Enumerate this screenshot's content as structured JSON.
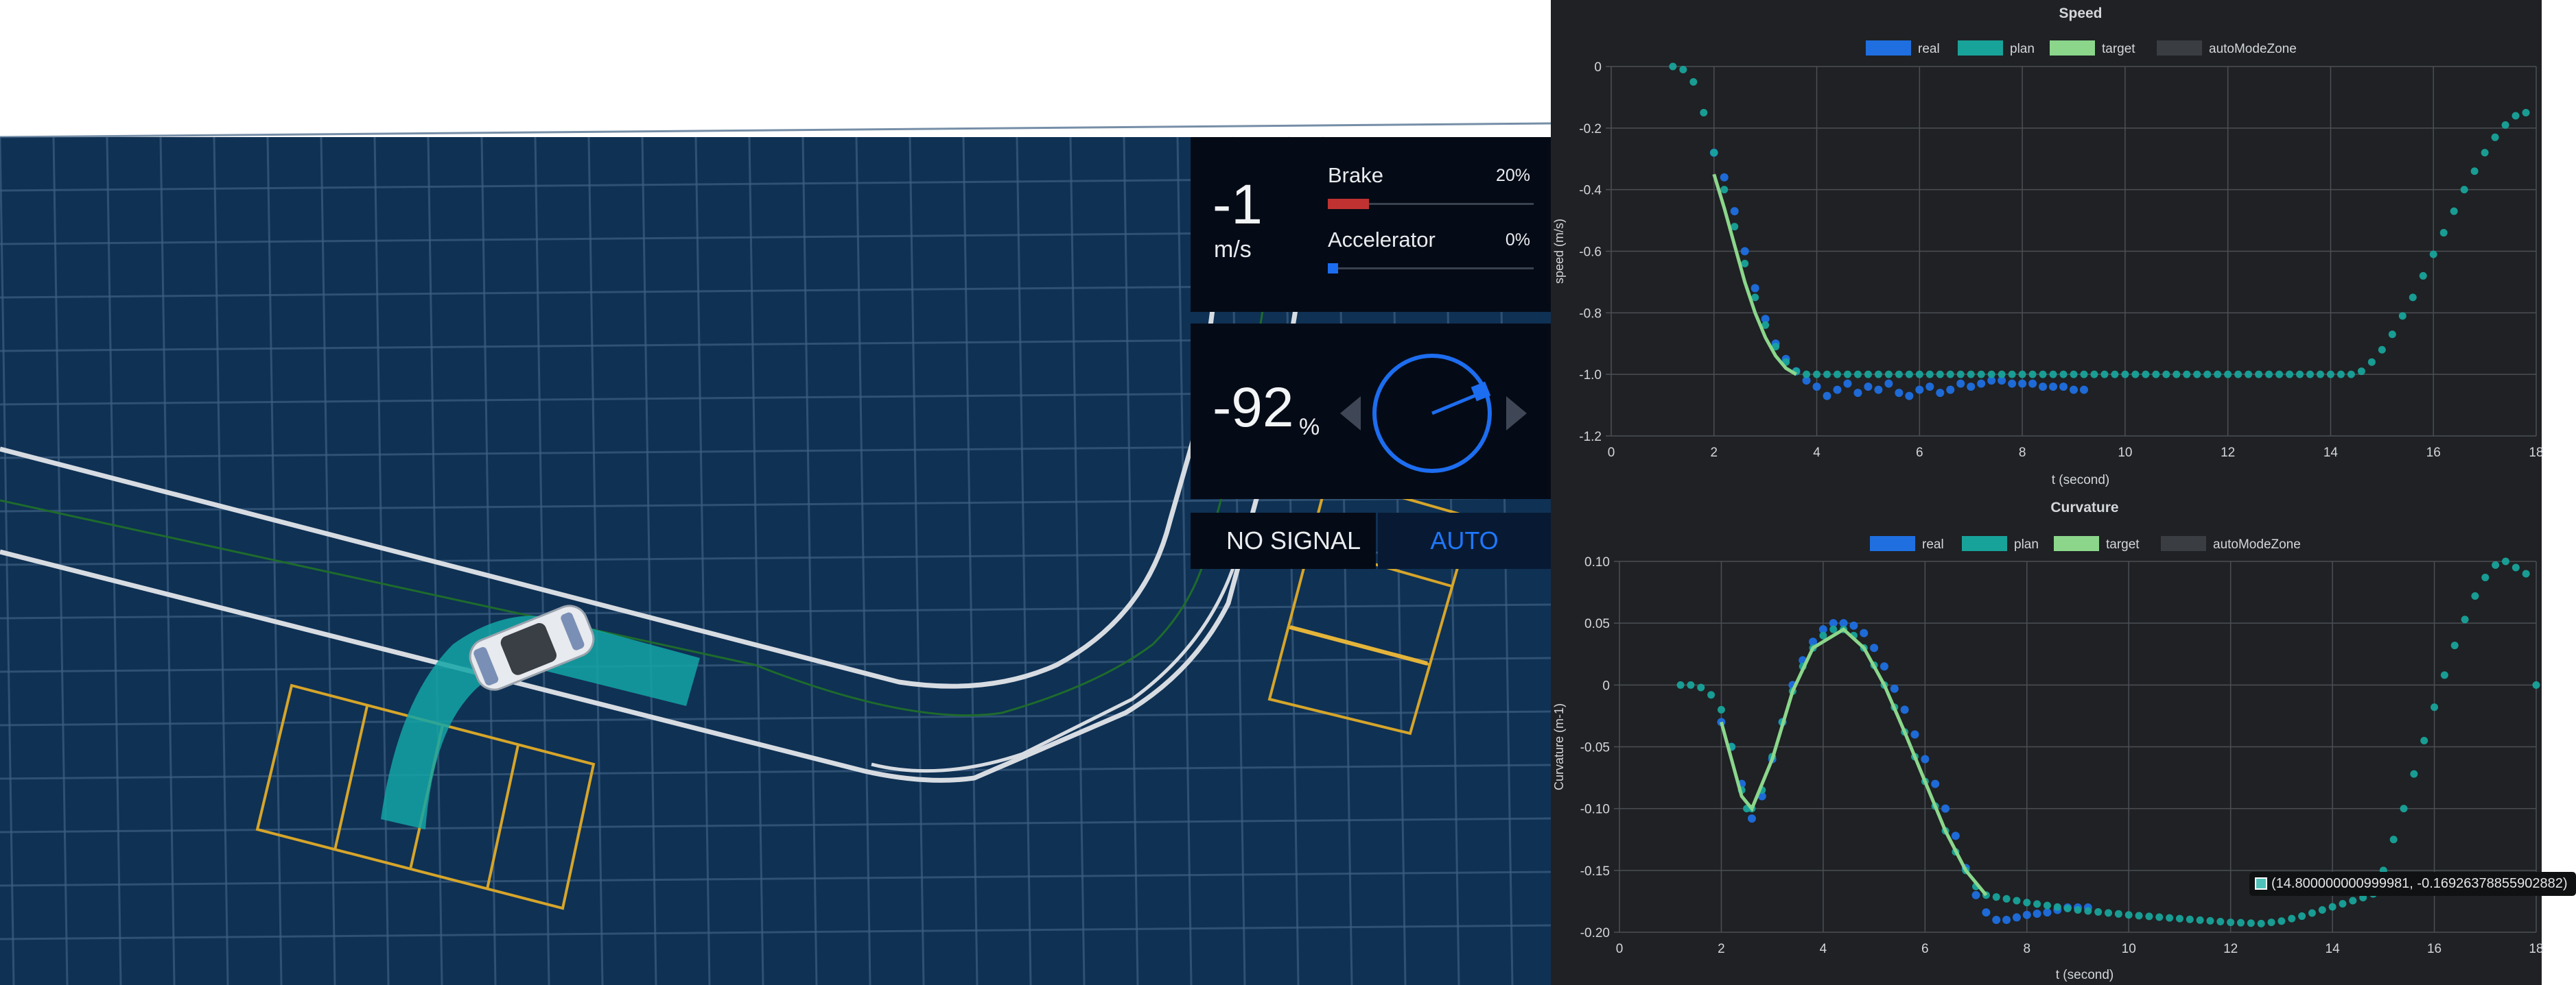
{
  "hud": {
    "speed_value": "-1",
    "speed_unit": "m/s",
    "brake_label": "Brake",
    "brake_pct": "20%",
    "brake_fraction": 0.2,
    "accel_label": "Accelerator",
    "accel_pct": "0%",
    "accel_fraction": 0.0,
    "steer_value": "-92",
    "steer_unit": "%",
    "signal_label": "NO SIGNAL",
    "mode_label": "AUTO"
  },
  "colors": {
    "scene_bg": "#0f3154",
    "real": "#1f6fe0",
    "plan": "#18a39a",
    "target": "#8bd68b",
    "auto_zone": "#3a3d42",
    "brake": "#c03232",
    "accel": "#1c6cf0"
  },
  "tooltip": {
    "text": "(14.800000000999981, -0.16926378855902882)"
  },
  "chart_data": [
    {
      "type": "line",
      "title": "Speed",
      "xlabel": "t (second)",
      "ylabel": "speed (m/s)",
      "xlim": [
        0,
        18
      ],
      "ylim": [
        -1.2,
        0
      ],
      "xticks": [
        0,
        2,
        4,
        6,
        8,
        10,
        12,
        14,
        16,
        18
      ],
      "yticks": [
        0,
        -0.2,
        -0.4,
        -0.6,
        -0.8,
        -1.0,
        -1.2
      ],
      "ytick_labels": [
        "0",
        "-0.2",
        "-0.4",
        "-0.6",
        "-0.8",
        "-1.0",
        "-1.2"
      ],
      "grid": true,
      "legend": "top-center",
      "series": [
        {
          "name": "real",
          "style": "dots",
          "points": [
            [
              2.0,
              -0.28
            ],
            [
              2.2,
              -0.36
            ],
            [
              2.4,
              -0.47
            ],
            [
              2.6,
              -0.6
            ],
            [
              2.8,
              -0.72
            ],
            [
              3.0,
              -0.82
            ],
            [
              3.2,
              -0.9
            ],
            [
              3.4,
              -0.95
            ],
            [
              3.6,
              -0.99
            ],
            [
              3.8,
              -1.02
            ],
            [
              4.0,
              -1.04
            ],
            [
              4.2,
              -1.07
            ],
            [
              4.4,
              -1.05
            ],
            [
              4.6,
              -1.03
            ],
            [
              4.8,
              -1.06
            ],
            [
              5.0,
              -1.04
            ],
            [
              5.2,
              -1.05
            ],
            [
              5.4,
              -1.03
            ],
            [
              5.6,
              -1.06
            ],
            [
              5.8,
              -1.07
            ],
            [
              6.0,
              -1.05
            ],
            [
              6.2,
              -1.04
            ],
            [
              6.4,
              -1.06
            ],
            [
              6.6,
              -1.05
            ],
            [
              6.8,
              -1.03
            ],
            [
              7.0,
              -1.04
            ],
            [
              7.2,
              -1.03
            ],
            [
              7.4,
              -1.02
            ],
            [
              7.6,
              -1.02
            ],
            [
              7.8,
              -1.03
            ],
            [
              8.0,
              -1.03
            ],
            [
              8.2,
              -1.03
            ],
            [
              8.4,
              -1.04
            ],
            [
              8.6,
              -1.04
            ],
            [
              8.8,
              -1.04
            ],
            [
              9.0,
              -1.05
            ],
            [
              9.2,
              -1.05
            ]
          ]
        },
        {
          "name": "plan",
          "style": "dots",
          "points": [
            [
              1.2,
              0
            ],
            [
              1.4,
              -0.01
            ],
            [
              1.6,
              -0.05
            ],
            [
              1.8,
              -0.15
            ],
            [
              2.0,
              -0.28
            ],
            [
              2.2,
              -0.4
            ],
            [
              2.4,
              -0.52
            ],
            [
              2.6,
              -0.64
            ],
            [
              2.8,
              -0.75
            ],
            [
              3.0,
              -0.84
            ],
            [
              3.2,
              -0.91
            ],
            [
              3.4,
              -0.96
            ],
            [
              3.6,
              -0.99
            ],
            [
              3.8,
              -1.0
            ],
            [
              4.0,
              -1.0
            ],
            [
              5.0,
              -1.0
            ],
            [
              6.0,
              -1.0
            ],
            [
              7.0,
              -1.0
            ],
            [
              8.0,
              -1.0
            ],
            [
              9.0,
              -1.0
            ],
            [
              10.0,
              -1.0
            ],
            [
              11.0,
              -1.0
            ],
            [
              12.0,
              -1.0
            ],
            [
              13.0,
              -1.0
            ],
            [
              14.0,
              -1.0
            ],
            [
              14.4,
              -1.0
            ],
            [
              14.6,
              -0.99
            ],
            [
              14.8,
              -0.96
            ],
            [
              15.0,
              -0.92
            ],
            [
              15.2,
              -0.87
            ],
            [
              15.4,
              -0.81
            ],
            [
              15.6,
              -0.75
            ],
            [
              15.8,
              -0.68
            ],
            [
              16.0,
              -0.61
            ],
            [
              16.2,
              -0.54
            ],
            [
              16.4,
              -0.47
            ],
            [
              16.6,
              -0.4
            ],
            [
              16.8,
              -0.34
            ],
            [
              17.0,
              -0.28
            ],
            [
              17.2,
              -0.23
            ],
            [
              17.4,
              -0.19
            ],
            [
              17.6,
              -0.16
            ],
            [
              17.8,
              -0.15
            ]
          ]
        },
        {
          "name": "target",
          "style": "line",
          "points": [
            [
              2.0,
              -0.35
            ],
            [
              2.2,
              -0.46
            ],
            [
              2.4,
              -0.58
            ],
            [
              2.6,
              -0.7
            ],
            [
              2.8,
              -0.8
            ],
            [
              3.0,
              -0.88
            ],
            [
              3.2,
              -0.94
            ],
            [
              3.4,
              -0.98
            ],
            [
              3.6,
              -1.0
            ]
          ]
        },
        {
          "name": "autoModeZone",
          "style": "none",
          "points": []
        }
      ]
    },
    {
      "type": "line",
      "title": "Curvature",
      "xlabel": "t (second)",
      "ylabel": "Curvature (m-1)",
      "xlim": [
        0,
        18
      ],
      "ylim": [
        -0.2,
        0.1
      ],
      "xticks": [
        0,
        2,
        4,
        6,
        8,
        10,
        12,
        14,
        16,
        18
      ],
      "yticks": [
        0.1,
        0.05,
        0,
        -0.05,
        -0.1,
        -0.15,
        -0.2
      ],
      "ytick_labels": [
        "0.10",
        "0.05",
        "0",
        "-0.05",
        "-0.10",
        "-0.15",
        "-0.20"
      ],
      "grid": true,
      "legend": "top-center",
      "series": [
        {
          "name": "real",
          "style": "dots",
          "points": [
            [
              2.0,
              -0.03
            ],
            [
              2.2,
              -0.05
            ],
            [
              2.4,
              -0.08
            ],
            [
              2.6,
              -0.108
            ],
            [
              2.8,
              -0.09
            ],
            [
              3.0,
              -0.06
            ],
            [
              3.2,
              -0.03
            ],
            [
              3.4,
              0.0
            ],
            [
              3.6,
              0.02
            ],
            [
              3.8,
              0.035
            ],
            [
              4.0,
              0.045
            ],
            [
              4.2,
              0.05
            ],
            [
              4.4,
              0.05
            ],
            [
              4.6,
              0.048
            ],
            [
              4.8,
              0.042
            ],
            [
              5.0,
              0.03
            ],
            [
              5.2,
              0.015
            ],
            [
              5.4,
              -0.003
            ],
            [
              5.6,
              -0.02
            ],
            [
              5.8,
              -0.04
            ],
            [
              6.0,
              -0.06
            ],
            [
              6.2,
              -0.08
            ],
            [
              6.4,
              -0.1
            ],
            [
              6.6,
              -0.122
            ],
            [
              6.8,
              -0.148
            ],
            [
              7.0,
              -0.17
            ],
            [
              7.2,
              -0.184
            ],
            [
              7.4,
              -0.19
            ],
            [
              7.6,
              -0.19
            ],
            [
              7.8,
              -0.188
            ],
            [
              8.0,
              -0.186
            ],
            [
              8.2,
              -0.185
            ],
            [
              8.4,
              -0.184
            ],
            [
              8.6,
              -0.182
            ],
            [
              8.8,
              -0.18
            ],
            [
              9.0,
              -0.18
            ],
            [
              9.2,
              -0.18
            ]
          ]
        },
        {
          "name": "plan",
          "style": "dots",
          "points": [
            [
              1.2,
              0.0
            ],
            [
              1.4,
              0.0
            ],
            [
              1.6,
              -0.002
            ],
            [
              1.8,
              -0.008
            ],
            [
              2.0,
              -0.02
            ],
            [
              2.2,
              -0.05
            ],
            [
              2.4,
              -0.085
            ],
            [
              2.5,
              -0.1
            ],
            [
              2.6,
              -0.1
            ],
            [
              2.8,
              -0.085
            ],
            [
              3.0,
              -0.058
            ],
            [
              3.2,
              -0.03
            ],
            [
              3.4,
              -0.005
            ],
            [
              3.6,
              0.015
            ],
            [
              3.8,
              0.03
            ],
            [
              4.0,
              0.04
            ],
            [
              4.2,
              0.045
            ],
            [
              4.4,
              0.045
            ],
            [
              4.6,
              0.04
            ],
            [
              4.8,
              0.03
            ],
            [
              5.0,
              0.016
            ],
            [
              5.2,
              0.0
            ],
            [
              5.4,
              -0.018
            ],
            [
              5.6,
              -0.038
            ],
            [
              5.8,
              -0.058
            ],
            [
              6.0,
              -0.078
            ],
            [
              6.2,
              -0.098
            ],
            [
              6.4,
              -0.118
            ],
            [
              6.6,
              -0.135
            ],
            [
              6.8,
              -0.15
            ],
            [
              7.0,
              -0.163
            ],
            [
              7.2,
              -0.17
            ],
            [
              8.0,
              -0.176
            ],
            [
              9.0,
              -0.182
            ],
            [
              10.0,
              -0.186
            ],
            [
              11.0,
              -0.189
            ],
            [
              12.0,
              -0.192
            ],
            [
              12.6,
              -0.193
            ],
            [
              13.0,
              -0.191
            ],
            [
              13.4,
              -0.187
            ],
            [
              13.8,
              -0.182
            ],
            [
              14.2,
              -0.177
            ],
            [
              14.6,
              -0.172
            ],
            [
              14.8,
              -0.169
            ],
            [
              15.0,
              -0.15
            ],
            [
              15.2,
              -0.125
            ],
            [
              15.4,
              -0.1
            ],
            [
              15.6,
              -0.072
            ],
            [
              15.8,
              -0.045
            ],
            [
              16.0,
              -0.018
            ],
            [
              16.2,
              0.008
            ],
            [
              16.4,
              0.032
            ],
            [
              16.6,
              0.053
            ],
            [
              16.8,
              0.072
            ],
            [
              17.0,
              0.087
            ],
            [
              17.2,
              0.097
            ],
            [
              17.4,
              0.1
            ],
            [
              17.6,
              0.095
            ],
            [
              17.8,
              0.09
            ],
            [
              18.0,
              0.0
            ]
          ]
        },
        {
          "name": "target",
          "style": "line",
          "points": [
            [
              2.0,
              -0.03
            ],
            [
              2.4,
              -0.09
            ],
            [
              2.6,
              -0.1
            ],
            [
              3.0,
              -0.06
            ],
            [
              3.4,
              -0.005
            ],
            [
              3.8,
              0.03
            ],
            [
              4.4,
              0.045
            ],
            [
              4.8,
              0.03
            ],
            [
              5.2,
              0.0
            ],
            [
              5.6,
              -0.038
            ],
            [
              6.0,
              -0.078
            ],
            [
              6.4,
              -0.118
            ],
            [
              6.8,
              -0.15
            ],
            [
              7.2,
              -0.17
            ]
          ]
        },
        {
          "name": "autoModeZone",
          "style": "none",
          "points": []
        }
      ]
    }
  ]
}
